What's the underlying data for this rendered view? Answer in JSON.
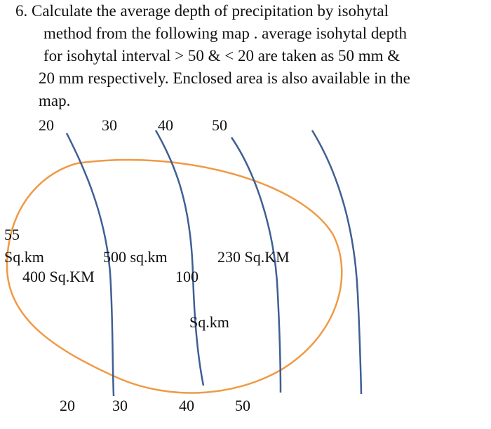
{
  "question": {
    "lines": [
      "6. Calculate the average depth of precipitation by isohytal",
      "method  from the following map . average isohytal depth",
      "for isohytal interval  > 50   &   < 20  are taken as 50 mm &",
      "20 mm respectively.  Enclosed area is also available in the",
      "map."
    ]
  },
  "map": {
    "top_labels": [
      "20",
      "30",
      "40",
      "50"
    ],
    "bottom_labels": [
      "20",
      "30",
      "40",
      "50"
    ],
    "area_labels": {
      "a1_value": "55",
      "a1_unit": "Sq.km",
      "a2": "400 Sq.KM",
      "a3": "500 sq.km",
      "a4_value": "100",
      "a4_unit": "Sq.km",
      "a5": "230 Sq.KM"
    },
    "colors": {
      "isohyet": "#3f5f94",
      "boundary": "#ef9a45"
    }
  }
}
